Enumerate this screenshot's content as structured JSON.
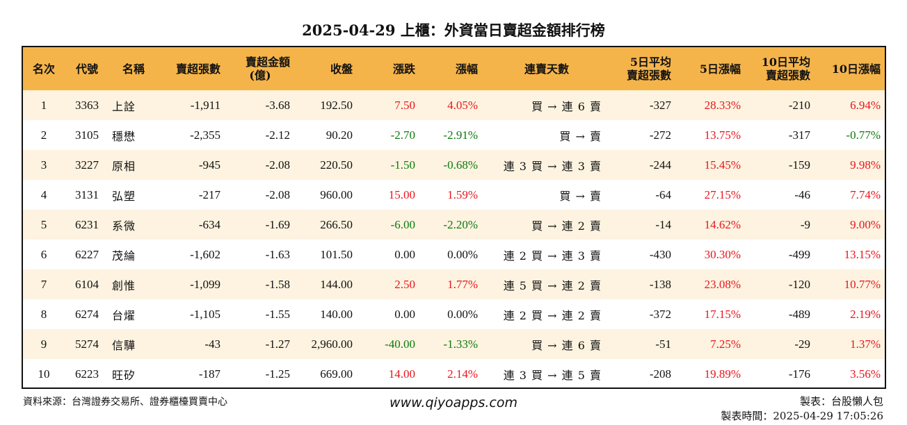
{
  "title": "2025-04-29 上櫃：外資當日賣超金額排行榜",
  "colors": {
    "header_bg": "#f5b44a",
    "row_alt_bg": "#fdf3e0",
    "up": "#e8141c",
    "down": "#0c7a0c"
  },
  "columns": [
    {
      "key": "rank",
      "line1": "名次",
      "line2": ""
    },
    {
      "key": "code",
      "line1": "代號",
      "line2": ""
    },
    {
      "key": "name",
      "line1": "名稱",
      "line2": ""
    },
    {
      "key": "sell_shares",
      "line1": "賣超張數",
      "line2": ""
    },
    {
      "key": "sell_amount",
      "line1": "賣超金額",
      "line2": "(億)"
    },
    {
      "key": "close",
      "line1": "收盤",
      "line2": ""
    },
    {
      "key": "change",
      "line1": "漲跌",
      "line2": ""
    },
    {
      "key": "pct",
      "line1": "漲幅",
      "line2": ""
    },
    {
      "key": "streak",
      "line1": "連賣天數",
      "line2": ""
    },
    {
      "key": "avg5",
      "line1": "5日平均",
      "line2": "賣超張數"
    },
    {
      "key": "pct5",
      "line1": "5日漲幅",
      "line2": ""
    },
    {
      "key": "avg10",
      "line1": "10日平均",
      "line2": "賣超張數"
    },
    {
      "key": "pct10",
      "line1": "10日漲幅",
      "line2": ""
    }
  ],
  "rows": [
    {
      "rank": "1",
      "code": "3363",
      "name": "上詮",
      "sell_shares": "-1,911",
      "sell_amount": "-3.68",
      "close": "192.50",
      "change": "7.50",
      "pct": "4.05%",
      "streak": "買 → 連 6 賣",
      "avg5": "-327",
      "pct5": "28.33%",
      "avg10": "-210",
      "pct10": "6.94%",
      "dir": "up",
      "dir5": "up",
      "dir10": "up"
    },
    {
      "rank": "2",
      "code": "3105",
      "name": "穩懋",
      "sell_shares": "-2,355",
      "sell_amount": "-2.12",
      "close": "90.20",
      "change": "-2.70",
      "pct": "-2.91%",
      "streak": "買 → 賣",
      "avg5": "-272",
      "pct5": "13.75%",
      "avg10": "-317",
      "pct10": "-0.77%",
      "dir": "down",
      "dir5": "up",
      "dir10": "down"
    },
    {
      "rank": "3",
      "code": "3227",
      "name": "原相",
      "sell_shares": "-945",
      "sell_amount": "-2.08",
      "close": "220.50",
      "change": "-1.50",
      "pct": "-0.68%",
      "streak": "連 3 買 → 連 3 賣",
      "avg5": "-244",
      "pct5": "15.45%",
      "avg10": "-159",
      "pct10": "9.98%",
      "dir": "down",
      "dir5": "up",
      "dir10": "up"
    },
    {
      "rank": "4",
      "code": "3131",
      "name": "弘塑",
      "sell_shares": "-217",
      "sell_amount": "-2.08",
      "close": "960.00",
      "change": "15.00",
      "pct": "1.59%",
      "streak": "買 → 賣",
      "avg5": "-64",
      "pct5": "27.15%",
      "avg10": "-46",
      "pct10": "7.74%",
      "dir": "up",
      "dir5": "up",
      "dir10": "up"
    },
    {
      "rank": "5",
      "code": "6231",
      "name": "系微",
      "sell_shares": "-634",
      "sell_amount": "-1.69",
      "close": "266.50",
      "change": "-6.00",
      "pct": "-2.20%",
      "streak": "買 → 連 2 賣",
      "avg5": "-14",
      "pct5": "14.62%",
      "avg10": "-9",
      "pct10": "9.00%",
      "dir": "down",
      "dir5": "up",
      "dir10": "up"
    },
    {
      "rank": "6",
      "code": "6227",
      "name": "茂綸",
      "sell_shares": "-1,602",
      "sell_amount": "-1.63",
      "close": "101.50",
      "change": "0.00",
      "pct": "0.00%",
      "streak": "連 2 買 → 連 3 賣",
      "avg5": "-430",
      "pct5": "30.30%",
      "avg10": "-499",
      "pct10": "13.15%",
      "dir": "flat",
      "dir5": "up",
      "dir10": "up"
    },
    {
      "rank": "7",
      "code": "6104",
      "name": "創惟",
      "sell_shares": "-1,099",
      "sell_amount": "-1.58",
      "close": "144.00",
      "change": "2.50",
      "pct": "1.77%",
      "streak": "連 5 買 → 連 2 賣",
      "avg5": "-138",
      "pct5": "23.08%",
      "avg10": "-120",
      "pct10": "10.77%",
      "dir": "up",
      "dir5": "up",
      "dir10": "up"
    },
    {
      "rank": "8",
      "code": "6274",
      "name": "台燿",
      "sell_shares": "-1,105",
      "sell_amount": "-1.55",
      "close": "140.00",
      "change": "0.00",
      "pct": "0.00%",
      "streak": "連 2 買 → 連 2 賣",
      "avg5": "-372",
      "pct5": "17.15%",
      "avg10": "-489",
      "pct10": "2.19%",
      "dir": "flat",
      "dir5": "up",
      "dir10": "up"
    },
    {
      "rank": "9",
      "code": "5274",
      "name": "信驊",
      "sell_shares": "-43",
      "sell_amount": "-1.27",
      "close": "2,960.00",
      "change": "-40.00",
      "pct": "-1.33%",
      "streak": "買 → 連 6 賣",
      "avg5": "-51",
      "pct5": "7.25%",
      "avg10": "-29",
      "pct10": "1.37%",
      "dir": "down",
      "dir5": "up",
      "dir10": "up"
    },
    {
      "rank": "10",
      "code": "6223",
      "name": "旺矽",
      "sell_shares": "-187",
      "sell_amount": "-1.25",
      "close": "669.00",
      "change": "14.00",
      "pct": "2.14%",
      "streak": "連 3 買 → 連 5 賣",
      "avg5": "-208",
      "pct5": "19.89%",
      "avg10": "-176",
      "pct10": "3.56%",
      "dir": "up",
      "dir5": "up",
      "dir10": "up"
    }
  ],
  "footer": {
    "source": "資料來源：台灣證券交易所、證券櫃檯買賣中心",
    "website": "www.qiyoapps.com",
    "maker": "製表：台股懶人包",
    "made_time": "製表時間：2025-04-29 17:05:26"
  }
}
